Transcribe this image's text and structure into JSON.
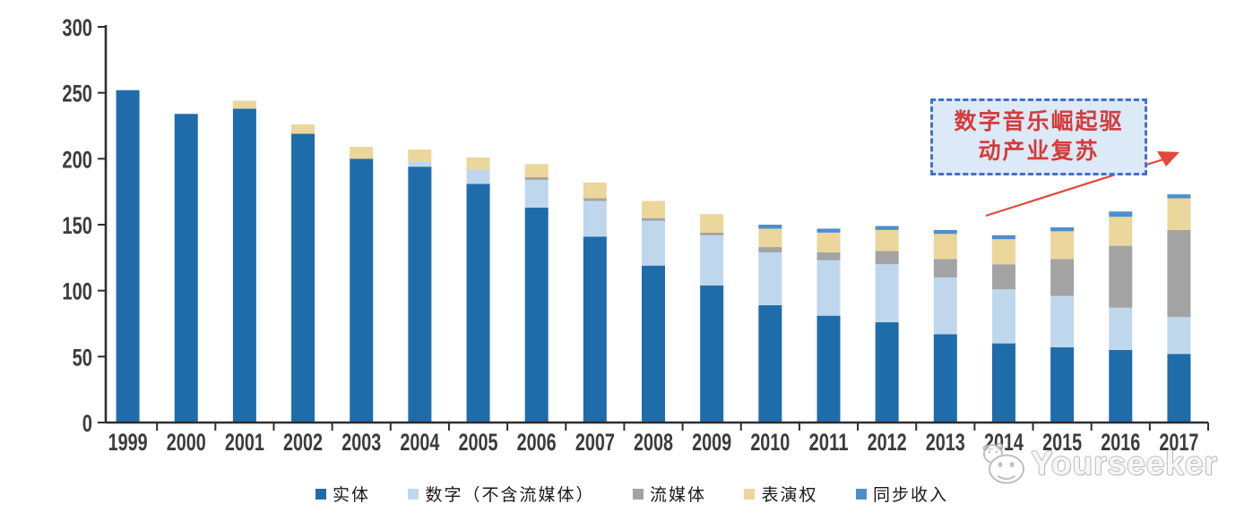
{
  "watermark": {
    "text": "Yourseeker"
  },
  "annotation": {
    "line1": "数字音乐崛起驱",
    "line2": "动产业复苏",
    "text_color": "#D43C3C",
    "border_color": "#4472C4",
    "fill_color": "#DCE9F6",
    "arrow_color": "#E3483C"
  },
  "chart_data": {
    "type": "bar",
    "stacked": true,
    "title": "",
    "xlabel": "",
    "ylabel": "",
    "categories": [
      "1999",
      "2000",
      "2001",
      "2002",
      "2003",
      "2004",
      "2005",
      "2006",
      "2007",
      "2008",
      "2009",
      "2010",
      "2011",
      "2012",
      "2013",
      "2014",
      "2015",
      "2016",
      "2017"
    ],
    "series": [
      {
        "name": "实体",
        "color": "#1F6CAB",
        "values": [
          252,
          234,
          238,
          219,
          200,
          194,
          181,
          163,
          141,
          119,
          104,
          89,
          81,
          76,
          67,
          60,
          57,
          55,
          52
        ]
      },
      {
        "name": "数字（不含流媒体）",
        "color": "#BFD7ED",
        "values": [
          0,
          0,
          0,
          0,
          0,
          4,
          11,
          21,
          27,
          34,
          38,
          40,
          42,
          44,
          43,
          41,
          39,
          32,
          28
        ]
      },
      {
        "name": "流媒体",
        "color": "#A3A3A3",
        "values": [
          0,
          0,
          0,
          0,
          0,
          0,
          0,
          2,
          2,
          2,
          2,
          4,
          6,
          10,
          14,
          19,
          28,
          47,
          66
        ]
      },
      {
        "name": "表演权",
        "color": "#EBD69B",
        "values": [
          0,
          0,
          6,
          7,
          9,
          9,
          9,
          10,
          12,
          13,
          14,
          14,
          15,
          16,
          19,
          19,
          21,
          22,
          24
        ]
      },
      {
        "name": "同步收入",
        "color": "#4D8FCC",
        "values": [
          0,
          0,
          0,
          0,
          0,
          0,
          0,
          0,
          0,
          0,
          0,
          3,
          3,
          3,
          3,
          3,
          3,
          4,
          3
        ]
      }
    ],
    "totals": [
      252,
      234,
      244,
      226,
      209,
      207,
      201,
      196,
      182,
      168,
      158,
      150,
      147,
      149,
      146,
      142,
      148,
      160,
      173
    ],
    "ylim": [
      0,
      300
    ],
    "yticks": [
      0,
      50,
      100,
      150,
      200,
      250,
      300
    ],
    "grid": false,
    "legend_position": "bottom",
    "axis_color": "#2e2e2e"
  }
}
